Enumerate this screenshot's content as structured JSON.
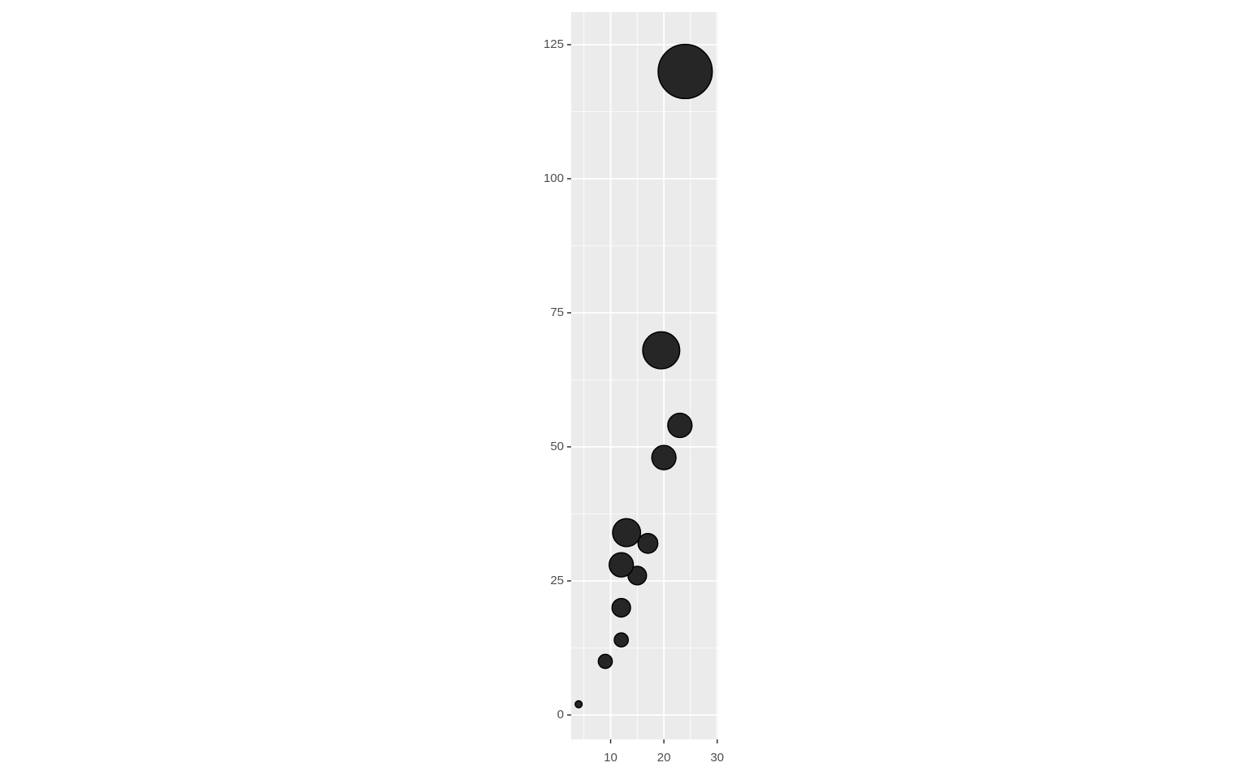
{
  "chart_data": {
    "type": "scatter",
    "x": [
      4,
      9,
      12,
      12,
      15,
      12,
      13,
      17,
      20,
      23,
      19.5,
      24
    ],
    "values": [
      2,
      10,
      14,
      20,
      26,
      28,
      34,
      32,
      48,
      54,
      68,
      120
    ],
    "sizes": [
      1,
      4,
      4,
      7,
      7,
      12,
      16,
      8,
      12,
      12,
      28,
      60
    ],
    "color": "#262626",
    "xlim": [
      2.6,
      30.2
    ],
    "xticks": [
      10,
      20,
      30
    ],
    "ylim": [
      -4.55,
      131.06
    ],
    "yticks": [
      0,
      25,
      50,
      75,
      100,
      125
    ],
    "grid": true
  }
}
